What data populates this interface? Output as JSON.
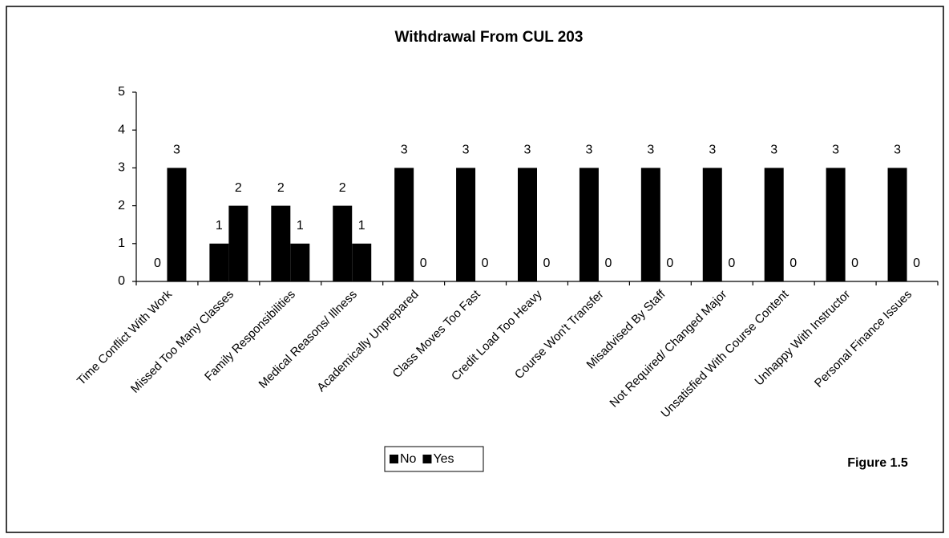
{
  "chart_data": {
    "type": "bar",
    "title": "Withdrawal From CUL 203",
    "categories": [
      "Time Conflict With Work",
      "Missed Too Many Classes",
      "Family Responsibilities",
      "Medical Reasons/ Illness",
      "Academically Unprepared",
      "Class Moves Too Fast",
      "Credit Load Too Heavy",
      "Course Won't Transfer",
      "Misadvised By Staff",
      "Not Required/ Changed Major",
      "Unsatisfied With Course Content",
      "Unhappy With Instructor",
      "Personal Finance Issues"
    ],
    "series": [
      {
        "name": "No",
        "color": "#000000",
        "values": [
          0,
          1,
          2,
          2,
          3,
          3,
          3,
          3,
          3,
          3,
          3,
          3,
          3
        ]
      },
      {
        "name": "Yes",
        "color": "#000000",
        "values": [
          3,
          2,
          1,
          1,
          0,
          0,
          0,
          0,
          0,
          0,
          0,
          0,
          0
        ]
      }
    ],
    "ylim": [
      0,
      5
    ],
    "yticks": [
      0,
      1,
      2,
      3,
      4,
      5
    ],
    "grid": false,
    "legend": "bottom",
    "annotation": "Figure 1.5"
  }
}
